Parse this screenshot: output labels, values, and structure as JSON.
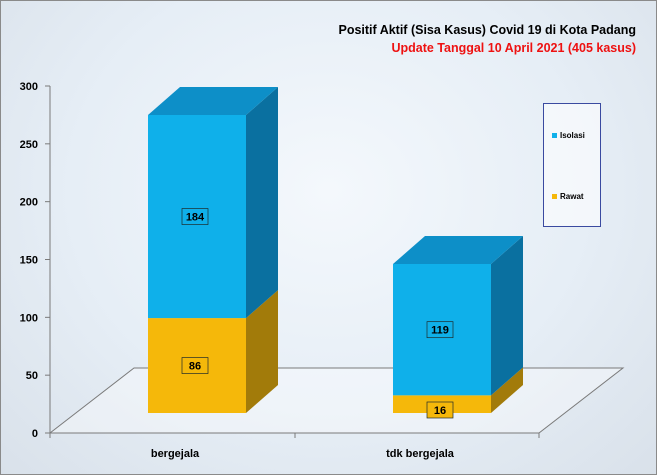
{
  "title": "Positif Aktif  (Sisa Kasus) Covid 19 di Kota Padang",
  "subtitle": "Update Tanggal 10 April 2021  (405  kasus)",
  "colors": {
    "Isolasi": {
      "front": "#0fb0ea",
      "side": "#0a70a0",
      "top": "#0d8fc8"
    },
    "Rawat": {
      "front": "#f5b80a",
      "side": "#a27b0a",
      "top": "#d9a206"
    },
    "title": "#000000",
    "subtitle": "#ee1111"
  },
  "chart_data": {
    "type": "bar",
    "stacked": true,
    "three_d": true,
    "categories": [
      "bergejala",
      "tdk bergejala"
    ],
    "series": [
      {
        "name": "Rawat",
        "values": [
          86,
          16
        ]
      },
      {
        "name": "Isolasi",
        "values": [
          184,
          119
        ]
      }
    ],
    "ylim": [
      0,
      300
    ],
    "yticks": [
      0,
      50,
      100,
      150,
      200,
      250,
      300
    ],
    "legend_position": "right",
    "grid": false
  }
}
